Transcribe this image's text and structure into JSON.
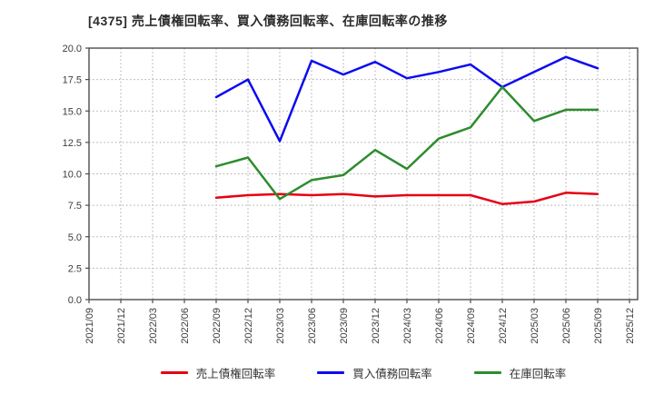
{
  "title": "[4375]  売上債権回転率、買入債務回転率、在庫回転率の推移",
  "chart_data": {
    "type": "line",
    "title": "[4375]  売上債権回転率、買入債務回転率、在庫回転率の推移",
    "categories": [
      "2021/09",
      "2021/12",
      "2022/03",
      "2022/06",
      "2022/09",
      "2022/12",
      "2023/03",
      "2023/06",
      "2023/09",
      "2023/12",
      "2024/03",
      "2024/06",
      "2024/09",
      "2024/12",
      "2025/03",
      "2025/06",
      "2025/09",
      "2025/12"
    ],
    "y_tick_labels": [
      "0.0",
      "2.5",
      "5.0",
      "7.5",
      "10.0",
      "12.5",
      "15.0",
      "17.5",
      "20.0"
    ],
    "ylim": [
      0,
      20
    ],
    "grid": true,
    "legend_position": "bottom",
    "series": [
      {
        "name": "売上債権回転率",
        "color": "#e60012",
        "start_category": "2022/09",
        "start_index": 4,
        "values": [
          8.1,
          8.3,
          8.4,
          8.3,
          8.4,
          8.2,
          8.3,
          8.3,
          8.3,
          7.6,
          7.8,
          8.5,
          8.4
        ]
      },
      {
        "name": "買入債務回転率",
        "color": "#0b0bf0",
        "start_category": "2022/09",
        "start_index": 4,
        "values": [
          16.1,
          17.5,
          12.6,
          19.0,
          17.9,
          18.9,
          17.6,
          18.1,
          18.7,
          16.9,
          18.1,
          19.3,
          18.4
        ]
      },
      {
        "name": "在庫回転率",
        "color": "#2d8c2d",
        "start_category": "2022/09",
        "start_index": 4,
        "values": [
          10.6,
          11.3,
          8.0,
          9.5,
          9.9,
          11.9,
          10.4,
          12.8,
          13.7,
          16.9,
          14.2,
          15.1,
          15.1
        ]
      }
    ],
    "style": {
      "grid_color": "#aaaaaa",
      "frame_color": "#4d4d4d",
      "tick_label_color": "#3c3c3c"
    }
  }
}
